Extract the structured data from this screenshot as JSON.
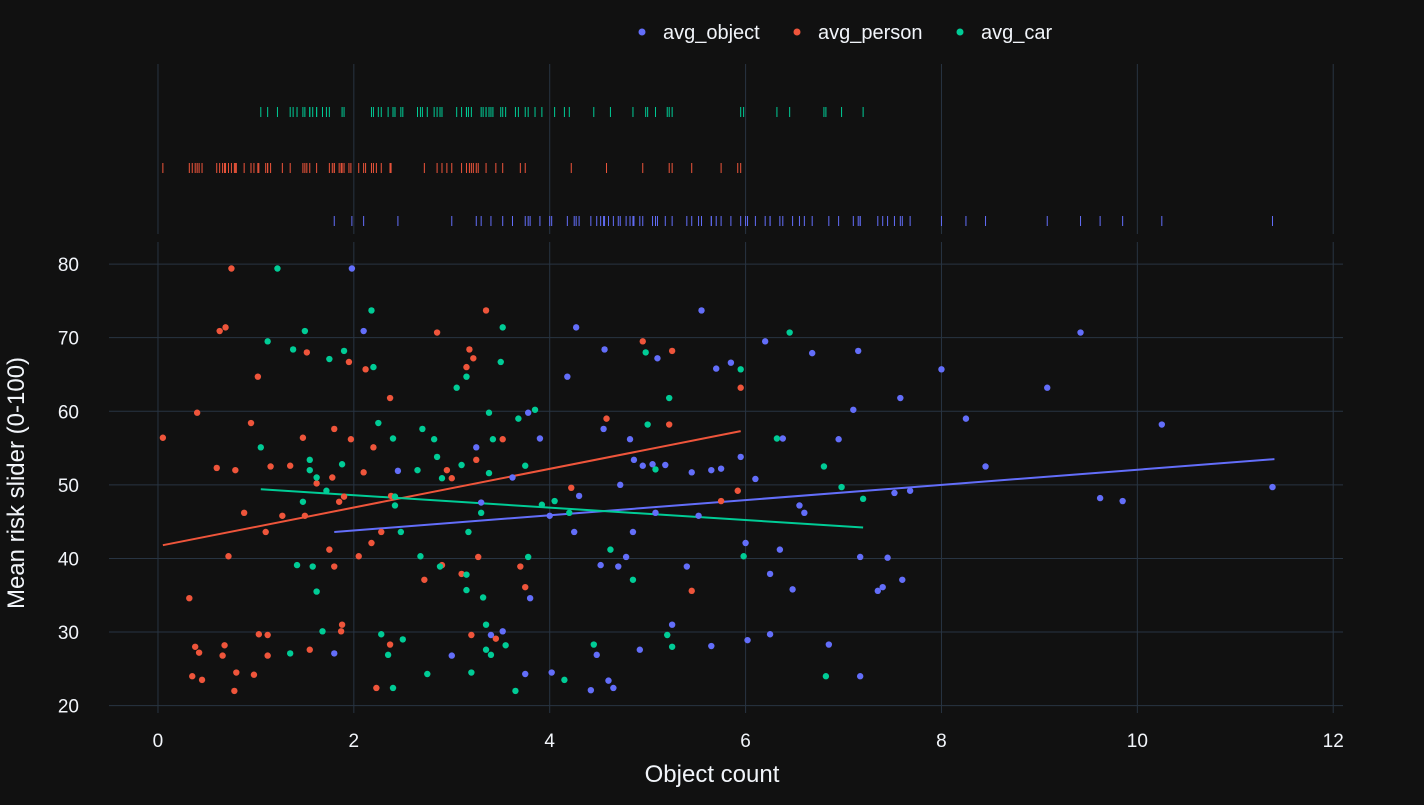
{
  "chart_data": {
    "type": "scatter",
    "xlabel": "Object count",
    "ylabel": "Mean risk slider (0-100)",
    "xlim": [
      -0.5,
      12.1
    ],
    "ylim": [
      19,
      83
    ],
    "x_ticks": [
      0,
      2,
      4,
      6,
      8,
      10,
      12
    ],
    "y_ticks": [
      20,
      30,
      40,
      50,
      60,
      70,
      80
    ],
    "grid": true,
    "legend_position": "top",
    "marginal": "rug",
    "trendline": "ols",
    "series": [
      {
        "name": "avg_object",
        "color": "#636efa",
        "trend": [
          [
            1.8,
            43.6
          ],
          [
            11.4,
            53.5
          ]
        ],
        "points": [
          [
            1.8,
            27.1
          ],
          [
            1.98,
            79.4
          ],
          [
            2.1,
            70.9
          ],
          [
            2.45,
            51.9
          ],
          [
            3.0,
            26.8
          ],
          [
            3.25,
            55.1
          ],
          [
            3.3,
            47.6
          ],
          [
            3.4,
            29.6
          ],
          [
            3.52,
            30.1
          ],
          [
            3.62,
            51.0
          ],
          [
            3.75,
            24.3
          ],
          [
            3.78,
            59.8
          ],
          [
            3.8,
            34.6
          ],
          [
            3.9,
            56.3
          ],
          [
            4.0,
            45.8
          ],
          [
            4.02,
            24.5
          ],
          [
            4.18,
            64.7
          ],
          [
            4.25,
            43.6
          ],
          [
            4.27,
            71.4
          ],
          [
            4.3,
            48.5
          ],
          [
            4.42,
            22.1
          ],
          [
            4.48,
            26.9
          ],
          [
            4.52,
            39.1
          ],
          [
            4.55,
            57.6
          ],
          [
            4.56,
            68.4
          ],
          [
            4.6,
            23.4
          ],
          [
            4.65,
            22.4
          ],
          [
            4.7,
            38.9
          ],
          [
            4.72,
            50.0
          ],
          [
            4.78,
            40.2
          ],
          [
            4.82,
            56.2
          ],
          [
            4.85,
            43.6
          ],
          [
            4.86,
            53.4
          ],
          [
            4.92,
            27.6
          ],
          [
            4.95,
            52.6
          ],
          [
            5.05,
            52.8
          ],
          [
            5.08,
            46.2
          ],
          [
            5.1,
            67.2
          ],
          [
            5.18,
            52.7
          ],
          [
            5.25,
            31.0
          ],
          [
            5.4,
            38.9
          ],
          [
            5.45,
            51.7
          ],
          [
            5.52,
            45.8
          ],
          [
            5.55,
            73.7
          ],
          [
            5.65,
            28.1
          ],
          [
            5.65,
            52.0
          ],
          [
            5.7,
            65.8
          ],
          [
            5.75,
            52.2
          ],
          [
            5.85,
            66.6
          ],
          [
            5.95,
            53.8
          ],
          [
            6.0,
            42.1
          ],
          [
            6.02,
            28.9
          ],
          [
            6.1,
            50.8
          ],
          [
            6.2,
            69.5
          ],
          [
            6.25,
            37.9
          ],
          [
            6.25,
            29.7
          ],
          [
            6.35,
            41.2
          ],
          [
            6.38,
            56.3
          ],
          [
            6.48,
            35.8
          ],
          [
            6.55,
            47.2
          ],
          [
            6.6,
            46.2
          ],
          [
            6.68,
            67.9
          ],
          [
            6.85,
            28.3
          ],
          [
            6.95,
            56.2
          ],
          [
            7.1,
            60.2
          ],
          [
            7.15,
            68.2
          ],
          [
            7.17,
            40.2
          ],
          [
            7.17,
            24.0
          ],
          [
            7.35,
            35.6
          ],
          [
            7.4,
            36.1
          ],
          [
            7.45,
            40.1
          ],
          [
            7.52,
            48.9
          ],
          [
            7.58,
            61.8
          ],
          [
            7.6,
            37.1
          ],
          [
            7.68,
            49.2
          ],
          [
            8.0,
            65.7
          ],
          [
            8.25,
            59.0
          ],
          [
            8.45,
            52.5
          ],
          [
            9.08,
            63.2
          ],
          [
            9.42,
            70.7
          ],
          [
            9.62,
            48.2
          ],
          [
            9.85,
            47.8
          ],
          [
            10.25,
            58.2
          ],
          [
            11.38,
            49.7
          ]
        ]
      },
      {
        "name": "avg_person",
        "color": "#ef553b",
        "trend": [
          [
            0.05,
            41.8
          ],
          [
            5.95,
            57.3
          ]
        ],
        "points": [
          [
            0.05,
            56.4
          ],
          [
            0.32,
            34.6
          ],
          [
            0.35,
            24.0
          ],
          [
            0.38,
            28.0
          ],
          [
            0.4,
            59.8
          ],
          [
            0.42,
            27.2
          ],
          [
            0.45,
            23.5
          ],
          [
            0.6,
            52.3
          ],
          [
            0.63,
            70.9
          ],
          [
            0.66,
            26.8
          ],
          [
            0.68,
            28.2
          ],
          [
            0.69,
            71.4
          ],
          [
            0.72,
            40.3
          ],
          [
            0.75,
            79.4
          ],
          [
            0.78,
            22.0
          ],
          [
            0.79,
            52.0
          ],
          [
            0.8,
            24.5
          ],
          [
            0.88,
            46.2
          ],
          [
            0.95,
            58.4
          ],
          [
            0.98,
            24.2
          ],
          [
            1.02,
            64.7
          ],
          [
            1.03,
            29.7
          ],
          [
            1.1,
            43.6
          ],
          [
            1.12,
            29.6
          ],
          [
            1.12,
            26.8
          ],
          [
            1.15,
            52.5
          ],
          [
            1.27,
            45.8
          ],
          [
            1.35,
            52.6
          ],
          [
            1.48,
            56.4
          ],
          [
            1.5,
            45.8
          ],
          [
            1.52,
            68.0
          ],
          [
            1.55,
            27.6
          ],
          [
            1.62,
            50.2
          ],
          [
            1.75,
            41.2
          ],
          [
            1.78,
            51.0
          ],
          [
            1.8,
            57.6
          ],
          [
            1.8,
            38.9
          ],
          [
            1.85,
            47.7
          ],
          [
            1.87,
            30.1
          ],
          [
            1.88,
            31.0
          ],
          [
            1.9,
            48.4
          ],
          [
            1.95,
            66.7
          ],
          [
            1.97,
            56.2
          ],
          [
            2.05,
            40.3
          ],
          [
            2.1,
            51.7
          ],
          [
            2.12,
            65.7
          ],
          [
            2.18,
            42.1
          ],
          [
            2.2,
            55.1
          ],
          [
            2.23,
            22.4
          ],
          [
            2.28,
            43.6
          ],
          [
            2.37,
            61.8
          ],
          [
            2.37,
            28.3
          ],
          [
            2.38,
            48.5
          ],
          [
            2.72,
            37.1
          ],
          [
            2.85,
            70.7
          ],
          [
            2.9,
            39.1
          ],
          [
            2.95,
            52.0
          ],
          [
            3.0,
            50.9
          ],
          [
            3.1,
            37.9
          ],
          [
            3.15,
            66.0
          ],
          [
            3.18,
            68.4
          ],
          [
            3.2,
            29.6
          ],
          [
            3.22,
            67.2
          ],
          [
            3.25,
            53.4
          ],
          [
            3.27,
            40.2
          ],
          [
            3.35,
            73.7
          ],
          [
            3.45,
            29.1
          ],
          [
            3.52,
            56.2
          ],
          [
            3.7,
            38.9
          ],
          [
            3.75,
            36.1
          ],
          [
            4.22,
            49.6
          ],
          [
            4.58,
            59.0
          ],
          [
            4.95,
            69.5
          ],
          [
            5.22,
            58.2
          ],
          [
            5.25,
            68.2
          ],
          [
            5.45,
            35.6
          ],
          [
            5.75,
            47.8
          ],
          [
            5.95,
            63.2
          ],
          [
            5.92,
            49.2
          ]
        ]
      },
      {
        "name": "avg_car",
        "color": "#00cc96",
        "trend": [
          [
            1.05,
            49.4
          ],
          [
            7.2,
            44.2
          ]
        ],
        "points": [
          [
            1.05,
            55.1
          ],
          [
            1.12,
            69.5
          ],
          [
            1.22,
            79.4
          ],
          [
            1.35,
            27.1
          ],
          [
            1.38,
            68.4
          ],
          [
            1.42,
            39.1
          ],
          [
            1.48,
            47.7
          ],
          [
            1.5,
            70.9
          ],
          [
            1.55,
            53.4
          ],
          [
            1.55,
            52.0
          ],
          [
            1.58,
            38.9
          ],
          [
            1.62,
            51.0
          ],
          [
            1.62,
            35.5
          ],
          [
            1.68,
            30.1
          ],
          [
            1.72,
            49.2
          ],
          [
            1.75,
            67.1
          ],
          [
            1.88,
            52.8
          ],
          [
            1.9,
            68.2
          ],
          [
            2.18,
            73.7
          ],
          [
            2.2,
            66.0
          ],
          [
            2.25,
            58.4
          ],
          [
            2.28,
            29.7
          ],
          [
            2.35,
            26.9
          ],
          [
            2.4,
            56.3
          ],
          [
            2.4,
            22.4
          ],
          [
            2.42,
            48.4
          ],
          [
            2.42,
            47.2
          ],
          [
            2.48,
            43.6
          ],
          [
            2.5,
            29.0
          ],
          [
            2.65,
            52.0
          ],
          [
            2.68,
            40.3
          ],
          [
            2.7,
            57.6
          ],
          [
            2.75,
            24.3
          ],
          [
            2.82,
            56.2
          ],
          [
            2.85,
            53.8
          ],
          [
            2.88,
            38.9
          ],
          [
            2.9,
            50.9
          ],
          [
            3.05,
            63.2
          ],
          [
            3.1,
            52.7
          ],
          [
            3.15,
            64.7
          ],
          [
            3.15,
            35.7
          ],
          [
            3.15,
            37.8
          ],
          [
            3.17,
            43.6
          ],
          [
            3.2,
            24.5
          ],
          [
            3.3,
            46.2
          ],
          [
            3.32,
            34.7
          ],
          [
            3.35,
            27.6
          ],
          [
            3.35,
            31.0
          ],
          [
            3.38,
            59.8
          ],
          [
            3.38,
            51.6
          ],
          [
            3.4,
            26.9
          ],
          [
            3.42,
            56.2
          ],
          [
            3.5,
            66.7
          ],
          [
            3.52,
            71.4
          ],
          [
            3.55,
            28.2
          ],
          [
            3.65,
            22.0
          ],
          [
            3.68,
            59.0
          ],
          [
            3.75,
            52.6
          ],
          [
            3.78,
            40.2
          ],
          [
            3.85,
            60.2
          ],
          [
            3.92,
            47.3
          ],
          [
            4.05,
            47.8
          ],
          [
            4.15,
            23.5
          ],
          [
            4.2,
            46.2
          ],
          [
            4.45,
            28.3
          ],
          [
            4.62,
            41.2
          ],
          [
            4.85,
            37.1
          ],
          [
            4.98,
            68.0
          ],
          [
            5.0,
            58.2
          ],
          [
            5.08,
            52.1
          ],
          [
            5.22,
            61.8
          ],
          [
            5.2,
            29.6
          ],
          [
            5.25,
            28.0
          ],
          [
            5.95,
            65.7
          ],
          [
            5.98,
            40.3
          ],
          [
            6.32,
            56.3
          ],
          [
            6.45,
            70.7
          ],
          [
            6.8,
            52.5
          ],
          [
            6.82,
            24.0
          ],
          [
            6.98,
            49.7
          ],
          [
            7.2,
            48.1
          ]
        ]
      }
    ]
  }
}
